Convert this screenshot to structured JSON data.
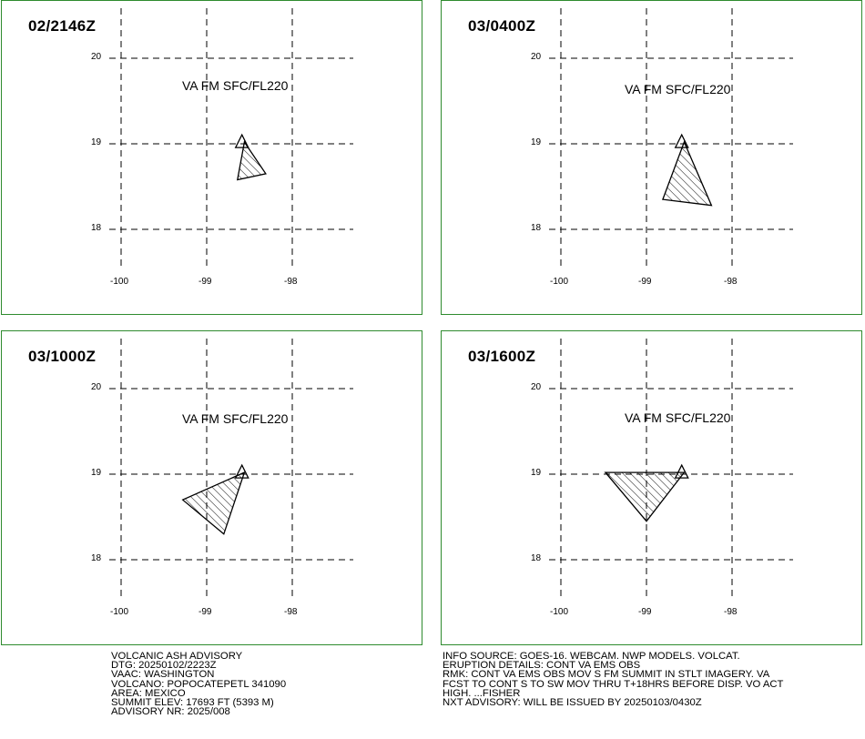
{
  "panels": [
    {
      "time": "02/2146Z",
      "label": "VA FM SFC/FL220",
      "poly": [
        [
          -98.56,
          19.02
        ],
        [
          -98.31,
          18.65
        ],
        [
          -98.64,
          18.58
        ],
        [
          -98.56,
          19.02
        ]
      ]
    },
    {
      "time": "03/0400Z",
      "label": "VA FM SFC/FL220",
      "poly": [
        [
          -98.56,
          19.02
        ],
        [
          -98.24,
          18.28
        ],
        [
          -98.81,
          18.35
        ],
        [
          -98.56,
          19.02
        ]
      ]
    },
    {
      "time": "03/1000Z",
      "label": "VA FM SFC/FL220",
      "poly": [
        [
          -98.56,
          19.02
        ],
        [
          -98.8,
          18.3
        ],
        [
          -99.28,
          18.7
        ],
        [
          -98.56,
          19.02
        ]
      ]
    },
    {
      "time": "03/1600Z",
      "label": "VA FM SFC/FL220",
      "poly": [
        [
          -98.56,
          19.02
        ],
        [
          -99.0,
          18.45
        ],
        [
          -99.48,
          19.02
        ],
        [
          -98.56,
          19.02
        ]
      ]
    }
  ],
  "axes": {
    "lon_ticks": [
      "-100",
      "-99",
      "-98"
    ],
    "lat_ticks": [
      "20",
      "19",
      "18"
    ]
  },
  "volcano_marker": {
    "lon": -98.62,
    "lat": 19.02
  },
  "footer": {
    "left": [
      "VOLCANIC ASH ADVISORY",
      "DTG: 20250102/2223Z",
      "VAAC: WASHINGTON",
      "VOLCANO: POPOCATEPETL 341090",
      "AREA: MEXICO",
      "SUMMIT ELEV: 17693 FT (5393 M)",
      "ADVISORY NR: 2025/008"
    ],
    "right": [
      "INFO SOURCE: GOES-16. WEBCAM. NWP MODELS. VOLCAT.",
      "ERUPTION DETAILS: CONT VA EMS OBS",
      "RMK: CONT VA EMS OBS MOV S FM SUMMIT IN STLT IMAGERY. VA",
      "FCST TO CONT S TO SW MOV THRU T+18HRS BEFORE DISP. VO ACT",
      "HIGH. ...FISHER",
      "NXT ADVISORY: WILL BE ISSUED BY 20250103/0430Z"
    ]
  },
  "colors": {
    "border": "#2e8b2e",
    "grid": "#000000",
    "poly": "#000000"
  }
}
